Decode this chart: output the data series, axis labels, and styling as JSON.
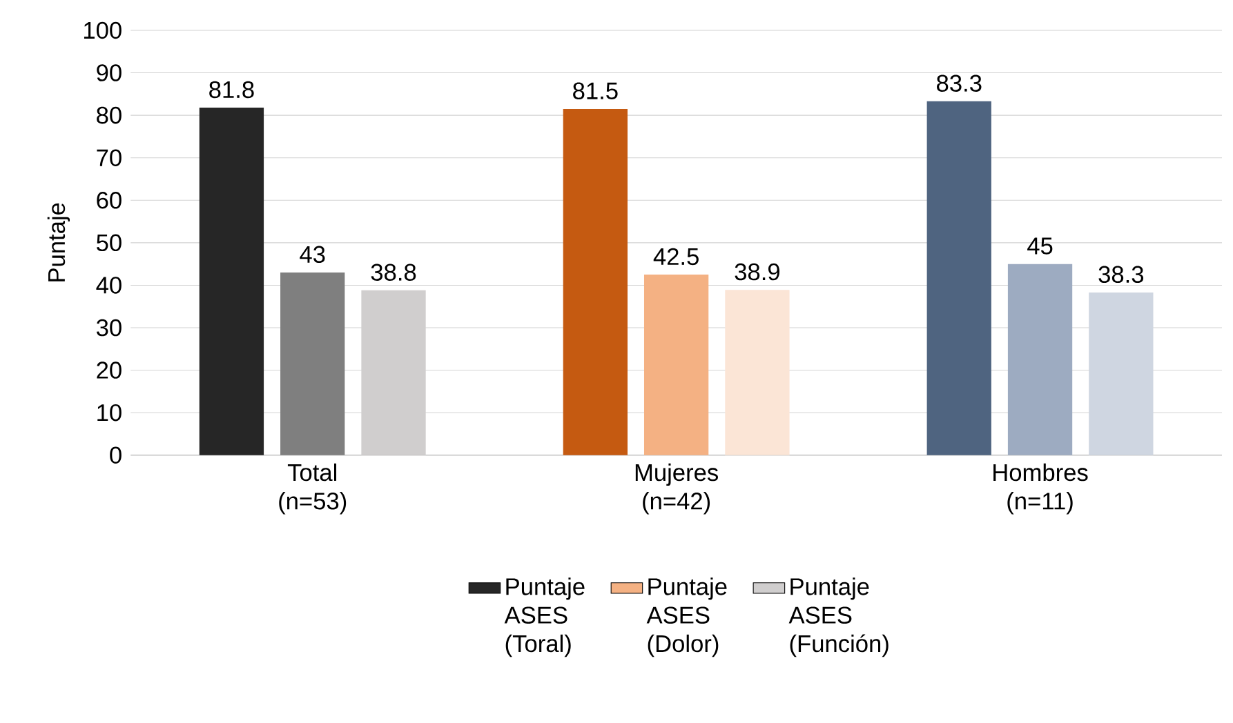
{
  "chart_data": {
    "type": "bar",
    "ylabel": "Puntaje",
    "categories": [
      "Total (n=53)",
      "Mujeres (n=42)",
      "Hombres (n=11)"
    ],
    "series": [
      {
        "name": "Puntaje ASES (Toral)",
        "color": "#262626",
        "colors": [
          "#262626",
          "#c55a11",
          "#4f6480"
        ],
        "values": [
          81.8,
          81.5,
          83.3
        ]
      },
      {
        "name": "Puntaje ASES (Dolor)",
        "color": "#f4b183",
        "colors": [
          "#7f7f7f",
          "#f4b183",
          "#9dabc1"
        ],
        "values": [
          43,
          42.5,
          45
        ]
      },
      {
        "name": "Puntaje ASES (Función)",
        "color": "#d0cece",
        "colors": [
          "#d0cece",
          "#fbe5d6",
          "#cfd6e1"
        ],
        "values": [
          38.8,
          38.9,
          38.3
        ]
      }
    ],
    "ylim": [
      0,
      100
    ],
    "yticks": [
      0,
      10,
      20,
      30,
      40,
      50,
      60,
      70,
      80,
      90,
      100
    ],
    "grid": "y",
    "legend": "bottom",
    "data_labels": true
  }
}
